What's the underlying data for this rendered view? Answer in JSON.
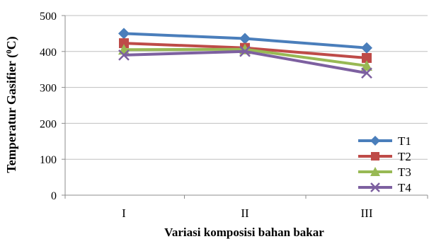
{
  "chart_data": {
    "type": "line",
    "categories": [
      "I",
      "II",
      "III"
    ],
    "series": [
      {
        "name": "T1",
        "values": [
          450,
          436,
          410
        ],
        "color": "#4a7ebb",
        "marker": "diamond"
      },
      {
        "name": "T2",
        "values": [
          423,
          410,
          382
        ],
        "color": "#be4b48",
        "marker": "square"
      },
      {
        "name": "T3",
        "values": [
          405,
          406,
          360
        ],
        "color": "#98b954",
        "marker": "triangle"
      },
      {
        "name": "T4",
        "values": [
          390,
          400,
          340
        ],
        "color": "#7d60a0",
        "marker": "x"
      }
    ],
    "xlabel": "Variasi komposisi bahan bakar",
    "ylabel_main": "Temperatur Gasifier (",
    "ylabel_sup": "0",
    "ylabel_end": "C)",
    "ylim": [
      0,
      500
    ],
    "yticks": [
      0,
      100,
      200,
      300,
      400,
      500
    ],
    "grid": true,
    "legend": "bottom-right"
  }
}
